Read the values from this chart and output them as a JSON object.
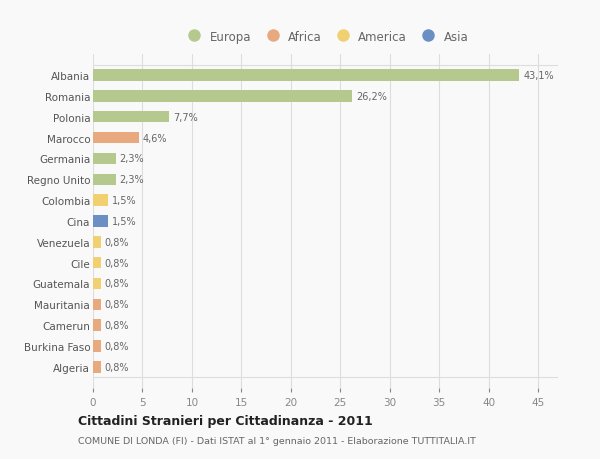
{
  "categories": [
    "Albania",
    "Romania",
    "Polonia",
    "Marocco",
    "Germania",
    "Regno Unito",
    "Colombia",
    "Cina",
    "Venezuela",
    "Cile",
    "Guatemala",
    "Mauritania",
    "Camerun",
    "Burkina Faso",
    "Algeria"
  ],
  "values": [
    43.1,
    26.2,
    7.7,
    4.6,
    2.3,
    2.3,
    1.5,
    1.5,
    0.8,
    0.8,
    0.8,
    0.8,
    0.8,
    0.8,
    0.8
  ],
  "labels": [
    "43,1%",
    "26,2%",
    "7,7%",
    "4,6%",
    "2,3%",
    "2,3%",
    "1,5%",
    "1,5%",
    "0,8%",
    "0,8%",
    "0,8%",
    "0,8%",
    "0,8%",
    "0,8%",
    "0,8%"
  ],
  "colors": [
    "#b5c98e",
    "#b5c98e",
    "#b5c98e",
    "#e8a97e",
    "#b5c98e",
    "#b5c98e",
    "#f0d070",
    "#6b8fc4",
    "#f0d070",
    "#f0d070",
    "#f0d070",
    "#e8a97e",
    "#e8a97e",
    "#e8a97e",
    "#e8a97e"
  ],
  "legend_labels": [
    "Europa",
    "Africa",
    "America",
    "Asia"
  ],
  "legend_colors": [
    "#b5c98e",
    "#e8a97e",
    "#f0d070",
    "#6b8fc4"
  ],
  "title": "Cittadini Stranieri per Cittadinanza - 2011",
  "subtitle": "COMUNE DI LONDA (FI) - Dati ISTAT al 1° gennaio 2011 - Elaborazione TUTTITALIA.IT",
  "xlim": [
    0,
    47
  ],
  "xticks": [
    0,
    5,
    10,
    15,
    20,
    25,
    30,
    35,
    40,
    45
  ],
  "bg_color": "#f9f9f9",
  "grid_color": "#dddddd",
  "bar_height": 0.55
}
